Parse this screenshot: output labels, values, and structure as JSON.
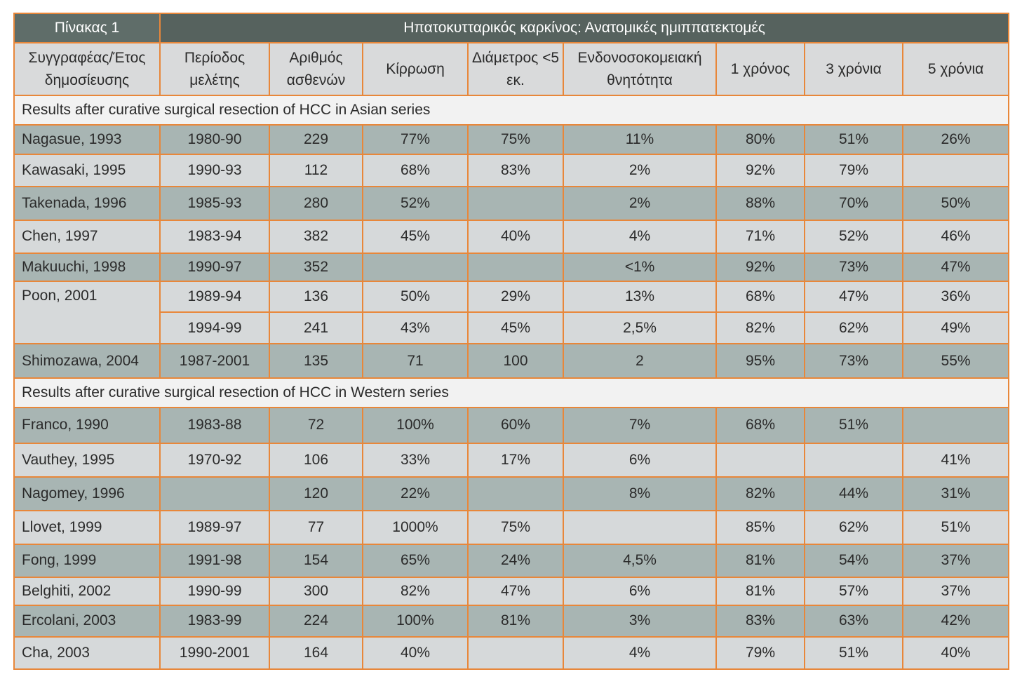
{
  "table_label": "Πίνακας 1",
  "table_title": "Ηπατοκυτταρικός καρκίνος: Ανατομικές ημιππατεκτομές",
  "headers": {
    "author": "Συγγραφέας/Έτος δημοσίευσης",
    "period": "Περίοδος μελέτης",
    "patients": "Αριθμός ασθενών",
    "cirrhosis": "Κίρρωση",
    "diameter": "Διάμετρος <5 εκ.",
    "mortality": "Ενδονοσοκομειακή θνητότητα",
    "y1": "1 χρόνος",
    "y3": "3 χρόνια",
    "y5": "5 χρόνια"
  },
  "asian_section": "Results after curative surgical resection of HCC in Asian series",
  "asian_rows": [
    [
      "Nagasue, 1993",
      "1980-90",
      "229",
      "77%",
      "75%",
      "11%",
      "80%",
      "51%",
      "26%"
    ],
    [
      "Kawasaki, 1995",
      "1990-93",
      "112",
      "68%",
      "83%",
      "2%",
      "92%",
      "79%",
      ""
    ],
    [
      "Takenada, 1996",
      "1985-93",
      "280",
      "52%",
      "",
      "2%",
      "88%",
      "70%",
      "50%"
    ],
    [
      "Chen, 1997",
      "1983-94",
      "382",
      "45%",
      "40%",
      "4%",
      "71%",
      "52%",
      "46%"
    ],
    [
      "Makuuchi, 1998",
      "1990-97",
      "352",
      "",
      "",
      "<1%",
      "92%",
      "73%",
      "47%"
    ],
    [
      "Poon, 2001",
      "1989-94",
      "136",
      "50%",
      "29%",
      "13%",
      "68%",
      "47%",
      "36%"
    ],
    [
      "",
      "1994-99",
      "241",
      "43%",
      "45%",
      "2,5%",
      "82%",
      "62%",
      "49%"
    ],
    [
      "Shimozawa, 2004",
      "1987-2001",
      "135",
      "71",
      "100",
      "2",
      "95%",
      "73%",
      "55%"
    ]
  ],
  "western_section": "Results after curative surgical resection of HCC in Western series",
  "western_rows": [
    [
      "Franco, 1990",
      "1983-88",
      "72",
      "100%",
      "60%",
      "7%",
      "68%",
      "51%",
      ""
    ],
    [
      "Vauthey, 1995",
      "1970-92",
      "106",
      "33%",
      "17%",
      "6%",
      "",
      "",
      "41%"
    ],
    [
      "Nagomey, 1996",
      "",
      "120",
      "22%",
      "",
      "8%",
      "82%",
      "44%",
      "31%"
    ],
    [
      "Llovet, 1999",
      "1989-97",
      "77",
      "1000%",
      "75%",
      "",
      "85%",
      "62%",
      "51%"
    ],
    [
      "Fong, 1999",
      "1991-98",
      "154",
      "65%",
      "24%",
      "4,5%",
      "81%",
      "54%",
      "37%"
    ],
    [
      "Belghiti, 2002",
      "1990-99",
      "300",
      "82%",
      "47%",
      "6%",
      "81%",
      "57%",
      "37%"
    ],
    [
      "Ercolani, 2003",
      "1983-99",
      "224",
      "100%",
      "81%",
      "3%",
      "83%",
      "63%",
      "42%"
    ],
    [
      "Cha, 2003",
      "1990-2001",
      "164",
      "40%",
      "",
      "4%",
      "79%",
      "51%",
      "40%"
    ]
  ]
}
